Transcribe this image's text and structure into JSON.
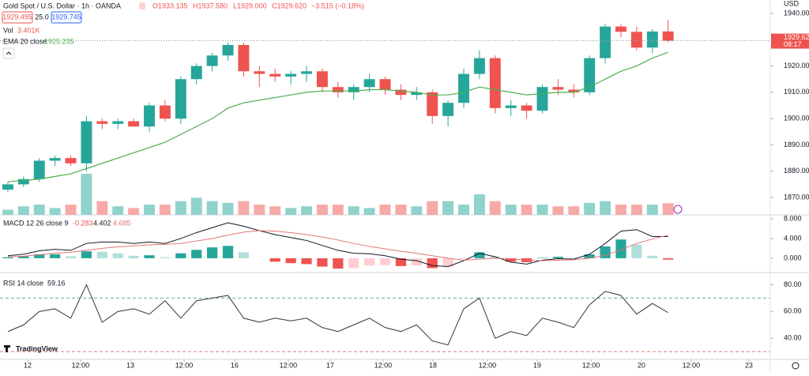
{
  "chart_data": {
    "type": "candlestick",
    "title": "Gold Spot / U.S. Dollar · 1h · OANDA",
    "header": [
      "O1933.135",
      "H1937.580",
      "L1929.000",
      "C1929.620",
      "−3.515 (−0.18%)"
    ],
    "sell_price": "1929.495",
    "spread": "25.0",
    "buy_price": "1929.745",
    "currency": "USD",
    "last_price": "1929.620",
    "countdown": "08:17",
    "brand": "TradingView",
    "up_color": "#26a69a",
    "down_color": "#ef5350",
    "x": [
      0,
      1,
      2,
      3,
      4,
      5,
      6,
      7,
      8,
      9,
      10,
      11,
      12,
      13,
      14,
      15,
      16,
      17,
      18,
      19,
      20,
      21,
      22,
      23,
      24,
      25,
      26,
      27,
      28,
      29,
      30,
      31,
      32,
      33,
      34,
      35,
      36,
      37,
      38,
      39,
      40,
      41,
      42
    ],
    "xlim": [
      -0.5,
      48.5
    ],
    "xticks": [
      {
        "value": 1.26,
        "label": "12"
      },
      {
        "value": 4.62,
        "label": "12:00"
      },
      {
        "value": 7.79,
        "label": "13"
      },
      {
        "value": 11.21,
        "label": "12:00"
      },
      {
        "value": 14.42,
        "label": "16"
      },
      {
        "value": 17.84,
        "label": "12:00"
      },
      {
        "value": 20.5,
        "label": "17"
      },
      {
        "value": 23.87,
        "label": "12:00"
      },
      {
        "value": 27.04,
        "label": "18"
      },
      {
        "value": 30.5,
        "label": "12:00"
      },
      {
        "value": 33.67,
        "label": "19"
      },
      {
        "value": 37.09,
        "label": "12:00"
      },
      {
        "value": 40.3,
        "label": "20"
      },
      {
        "value": 43.47,
        "label": "12:00"
      },
      {
        "value": 47.14,
        "label": "23"
      }
    ],
    "open": [
      1873,
      1875,
      1877,
      1884,
      1885,
      1883,
      1899,
      1898,
      1899,
      1897,
      1905,
      1900,
      1915,
      1920,
      1924,
      1928,
      1918,
      1917,
      1916,
      1917,
      1918,
      1912,
      1910,
      1912,
      1915,
      1911,
      1909,
      1910,
      1901,
      1906,
      1917,
      1923,
      1904,
      1905,
      1903,
      1912,
      1911,
      1910,
      1923,
      1935,
      1933,
      1927,
      1933.135
    ],
    "high": [
      1876,
      1878,
      1885,
      1886,
      1886,
      1901,
      1900,
      1900,
      1900,
      1906,
      1907,
      1916,
      1921,
      1925,
      1929,
      1929,
      1920,
      1919,
      1918,
      1920,
      1919,
      1914,
      1913,
      1917,
      1916,
      1913,
      1912,
      1911,
      1907,
      1919,
      1926,
      1924,
      1907,
      1906,
      1913,
      1915,
      1913,
      1924,
      1936,
      1936,
      1935,
      1934,
      1937.58
    ],
    "low": [
      1872,
      1874,
      1876,
      1882,
      1882,
      1880,
      1896,
      1896,
      1897,
      1895,
      1899,
      1898,
      1913,
      1918,
      1922,
      1916,
      1912,
      1914,
      1913,
      1914,
      1910,
      1908,
      1907,
      1910,
      1909,
      1907,
      1907,
      1898,
      1897,
      1904,
      1915,
      1902,
      1901,
      1900,
      1902,
      1909,
      1908,
      1909,
      1921,
      1931,
      1926,
      1925,
      1929
    ],
    "close": [
      1875,
      1877,
      1884,
      1885,
      1883,
      1899,
      1898,
      1899,
      1897,
      1905,
      1900,
      1915,
      1920,
      1924,
      1928,
      1918,
      1917,
      1916,
      1917,
      1918,
      1912,
      1910,
      1912,
      1915,
      1911,
      1909,
      1910,
      1901,
      1906,
      1917,
      1923,
      1904,
      1905,
      1903,
      1912,
      1911,
      1910,
      1923,
      1935,
      1933,
      1927,
      1933.135,
      1929.62
    ],
    "ylim": [
      1863.4,
      1945.1
    ],
    "yticks": [
      {
        "value": 1940,
        "label": "1940.000"
      },
      {
        "value": 1920,
        "label": "1920.000"
      },
      {
        "value": 1910,
        "label": "1910.000"
      },
      {
        "value": 1900,
        "label": "1900.000"
      },
      {
        "value": 1890,
        "label": "1890.000"
      },
      {
        "value": 1880,
        "label": "1880.000"
      },
      {
        "value": 1870,
        "label": "1870.000"
      }
    ],
    "ema": {
      "name": "EMA 20 close",
      "value_label": "1925.235",
      "color": "#4caf50",
      "values": [
        1876,
        1876.5,
        1877,
        1878,
        1879,
        1881,
        1883,
        1885,
        1887,
        1889,
        1891,
        1894,
        1897,
        1900,
        1904,
        1906,
        1907,
        1908,
        1909,
        1910,
        1910.5,
        1910.5,
        1910.5,
        1911,
        1911,
        1910.5,
        1910,
        1909,
        1909,
        1910,
        1912,
        1911,
        1910,
        1909,
        1909.5,
        1910,
        1910,
        1912,
        1915,
        1918,
        1920,
        1923,
        1925.235
      ]
    },
    "volume": {
      "name": "Vol",
      "value_label": "3.401K",
      "up_color": "#8fd3cb",
      "down_color": "#f7a9a7",
      "ylim": [
        0,
        15
      ],
      "values": [
        1.5,
        2.5,
        3,
        2,
        3,
        12,
        4,
        2.5,
        2,
        3,
        3,
        4,
        5,
        4,
        3.5,
        4,
        3,
        2.5,
        2,
        2.5,
        3,
        3,
        2.5,
        2,
        3,
        3,
        2.5,
        4,
        4,
        3,
        6,
        4,
        3,
        3,
        3,
        2.5,
        2.5,
        3.5,
        4,
        3,
        3,
        3,
        3.401
      ]
    },
    "macd": {
      "name": "MACD 12 26 close 9",
      "value_labels": [
        "-0.283",
        "4.402",
        "4.685"
      ],
      "ylim": [
        -2.9,
        8.8
      ],
      "yticks": [
        {
          "value": 8,
          "label": "8.000"
        },
        {
          "value": 4,
          "label": "4.000"
        },
        {
          "value": 0,
          "label": "0.000"
        }
      ],
      "histogram": [
        0.2,
        0.4,
        0.8,
        0.8,
        0.4,
        1.4,
        1.3,
        1.0,
        0.5,
        0.6,
        0.2,
        1.0,
        1.7,
        2.2,
        2.5,
        1.2,
        0.0,
        -0.7,
        -1.0,
        -1.2,
        -1.7,
        -2.1,
        -2.0,
        -1.5,
        -1.4,
        -1.6,
        -1.5,
        -2.0,
        -1.7,
        -0.1,
        1.2,
        0.3,
        -0.7,
        -0.8,
        0.1,
        0.3,
        0.1,
        0.8,
        2.4,
        3.8,
        2.8,
        0.5,
        -0.283
      ],
      "hist_colors": [
        "#26a69a",
        "#b2dfdb",
        "#ffcdd2",
        "#ef5350"
      ],
      "series": [
        {
          "name": "MACD",
          "color": "#131722",
          "values": [
            0.5,
            0.8,
            1.5,
            1.8,
            1.6,
            3,
            3.3,
            3.3,
            3.0,
            3.3,
            3.0,
            4.0,
            5.2,
            6.2,
            7.2,
            6.5,
            5.6,
            4.8,
            4.2,
            3.6,
            2.6,
            1.6,
            1.0,
            0.9,
            0.5,
            -0.2,
            -0.5,
            -1.5,
            -1.7,
            -0.5,
            1.0,
            0.3,
            -0.8,
            -1.2,
            -0.4,
            -0.1,
            -0.2,
            0.8,
            3.0,
            5.5,
            5.8,
            4.4,
            4.402
          ]
        },
        {
          "name": "Signal",
          "color": "#e57373",
          "values": [
            0.3,
            0.4,
            0.7,
            1.0,
            1.2,
            1.6,
            2.0,
            2.3,
            2.5,
            2.7,
            2.8,
            3.0,
            3.5,
            4.0,
            4.7,
            5.3,
            5.6,
            5.5,
            5.2,
            4.8,
            4.3,
            3.7,
            3.0,
            2.4,
            1.9,
            1.4,
            1.0,
            0.5,
            0.0,
            -0.4,
            -0.2,
            0.0,
            -0.1,
            -0.4,
            -0.5,
            -0.4,
            -0.3,
            0.0,
            0.6,
            1.7,
            3.0,
            3.9,
            4.685
          ]
        }
      ]
    },
    "rsi": {
      "name": "RSI 14 close",
      "value_label": "59.16",
      "color": "#333333",
      "ylim": [
        24.2,
        89.1
      ],
      "yticks": [
        {
          "value": 80,
          "label": "80.00"
        },
        {
          "value": 60,
          "label": "60.00"
        },
        {
          "value": 40,
          "label": "40.00"
        }
      ],
      "levels": [
        70,
        30
      ],
      "level_colors": [
        "#6aa9a3",
        "#e57373"
      ],
      "values": [
        45,
        50,
        60,
        62,
        55,
        80,
        52,
        60,
        62,
        58,
        68,
        55,
        68,
        70,
        72,
        55,
        52,
        55,
        53,
        55,
        48,
        45,
        50,
        55,
        48,
        45,
        50,
        38,
        35,
        62,
        70,
        40,
        45,
        42,
        55,
        52,
        48,
        65,
        75,
        72,
        58,
        66,
        59.16
      ]
    }
  }
}
